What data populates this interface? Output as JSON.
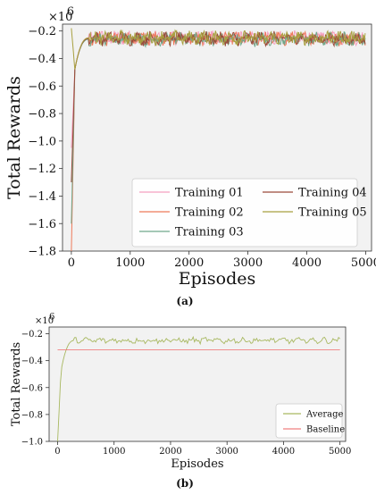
{
  "chart_data": [
    {
      "type": "line",
      "panel_label": "(a)",
      "exponent_label": "×10",
      "exponent_power": "6",
      "xlabel": "Episodes",
      "ylabel": "Total Rewards",
      "xlim": [
        -150,
        5100
      ],
      "ylim": [
        -1.8,
        -0.15
      ],
      "xticks": [
        0,
        1000,
        2000,
        3000,
        4000,
        5000
      ],
      "yticks": [
        -1.8,
        -1.6,
        -1.4,
        -1.2,
        -1.0,
        -0.8,
        -0.6,
        -0.4,
        -0.2
      ],
      "grid": false,
      "legend_position": "bottom-right",
      "series": [
        {
          "name": "Training 01",
          "color": "#f4a0c0",
          "y_start": -1.05,
          "plateau": -0.25
        },
        {
          "name": "Training 02",
          "color": "#ee7a5a",
          "y_start": -1.8,
          "plateau": -0.255
        },
        {
          "name": "Training 03",
          "color": "#6fa88a",
          "y_start": -1.6,
          "plateau": -0.26
        },
        {
          "name": "Training 04",
          "color": "#9a4a3a",
          "y_start": -1.3,
          "plateau": -0.255
        },
        {
          "name": "Training 05",
          "color": "#a8a040",
          "y_start": -0.18,
          "plateau": -0.25
        }
      ]
    },
    {
      "type": "line",
      "panel_label": "(b)",
      "exponent_label": "×10",
      "exponent_power": "6",
      "xlabel": "Episodes",
      "ylabel": "Total Rewards",
      "xlim": [
        -150,
        5100
      ],
      "ylim": [
        -1.0,
        -0.15
      ],
      "xticks": [
        0,
        1000,
        2000,
        3000,
        4000,
        5000
      ],
      "yticks": [
        -1.0,
        -0.8,
        -0.6,
        -0.4,
        -0.2
      ],
      "grid": false,
      "legend_position": "bottom-right",
      "series": [
        {
          "name": "Average",
          "color": "#a8b860",
          "y_start": -1.0,
          "plateau": -0.25
        },
        {
          "name": "Baseline",
          "color": "#f08080",
          "constant": -0.32
        }
      ]
    }
  ]
}
